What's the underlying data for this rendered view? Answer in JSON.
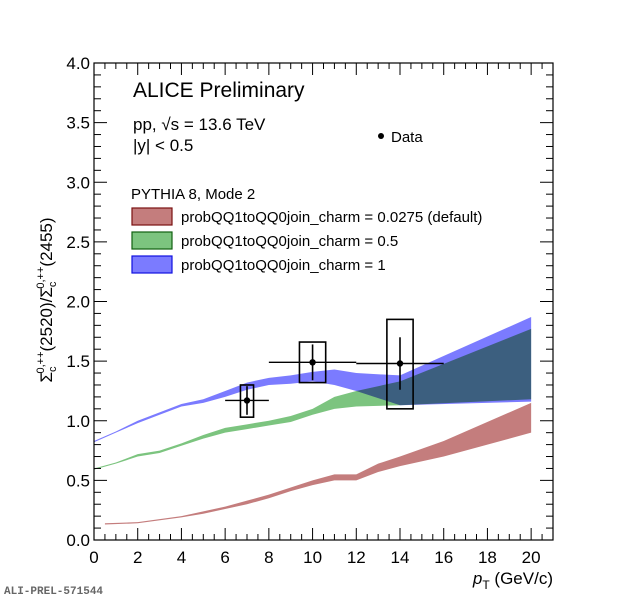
{
  "chart_data": {
    "type": "area",
    "title": "ALICE Preliminary",
    "subtitle_lines": [
      "pp, √s = 13.6 TeV",
      "|y| < 0.5"
    ],
    "xlabel": "p_T (GeV/c)",
    "xlabel_main": "p",
    "xlabel_sub": "T",
    "xlabel_unit": " (GeV/c)",
    "ylabel": "Σc0,++(2520)/Σc0,++(2455)",
    "xlim": [
      0,
      21
    ],
    "ylim": [
      0,
      4
    ],
    "xticks": [
      "0",
      "2",
      "4",
      "6",
      "8",
      "10",
      "12",
      "14",
      "16",
      "18",
      "20"
    ],
    "yticks": [
      "0.0",
      "0.5",
      "1.0",
      "1.5",
      "2.0",
      "2.5",
      "3.0",
      "3.5",
      "4.0"
    ],
    "legend_header": "PYTHIA 8, Mode 2",
    "data_legend": "Data",
    "colors": {
      "default": "#c47d7d",
      "half": "#7cc47f",
      "one": "#7b7bff",
      "overlap": "#46707e"
    },
    "series": [
      {
        "name": "probQQ1toQQ0join_charm = 0.0275 (default)",
        "color": "#c47d7d",
        "x": [
          0.5,
          2,
          4,
          5,
          6,
          7,
          8,
          9,
          10,
          11,
          12,
          13,
          14,
          16,
          20
        ],
        "low": [
          0.13,
          0.14,
          0.19,
          0.22,
          0.26,
          0.3,
          0.35,
          0.41,
          0.46,
          0.5,
          0.5,
          0.57,
          0.62,
          0.7,
          0.9
        ],
        "high": [
          0.14,
          0.15,
          0.2,
          0.24,
          0.28,
          0.33,
          0.38,
          0.44,
          0.5,
          0.55,
          0.55,
          0.64,
          0.7,
          0.83,
          1.15
        ]
      },
      {
        "name": "probQQ1toQQ0join_charm = 0.5",
        "color": "#7cc47f",
        "x": [
          0,
          1,
          2,
          3,
          4,
          5,
          6,
          7,
          8,
          9,
          10,
          11,
          12,
          14,
          20
        ],
        "low": [
          0.59,
          0.64,
          0.7,
          0.73,
          0.79,
          0.85,
          0.9,
          0.93,
          0.96,
          0.99,
          1.05,
          1.1,
          1.12,
          1.13,
          1.18
        ],
        "high": [
          0.6,
          0.65,
          0.72,
          0.75,
          0.81,
          0.88,
          0.94,
          0.97,
          1.0,
          1.04,
          1.1,
          1.2,
          1.25,
          1.33,
          1.77
        ]
      },
      {
        "name": "probQQ1toQQ0join_charm = 1",
        "color": "#7b7bff",
        "x": [
          0,
          1,
          2,
          3,
          4,
          5,
          6,
          7,
          8,
          9,
          10,
          11,
          12,
          14,
          20
        ],
        "low": [
          0.82,
          0.9,
          0.98,
          1.05,
          1.12,
          1.15,
          1.2,
          1.26,
          1.3,
          1.31,
          1.33,
          1.3,
          1.25,
          1.13,
          1.16
        ],
        "high": [
          0.83,
          0.91,
          1.0,
          1.07,
          1.14,
          1.18,
          1.25,
          1.32,
          1.36,
          1.38,
          1.41,
          1.43,
          1.4,
          1.38,
          1.87
        ]
      }
    ],
    "data_points": {
      "name": "Data",
      "x": [
        7,
        10,
        14
      ],
      "y": [
        1.17,
        1.49,
        1.48
      ],
      "xerr": [
        1,
        2,
        2
      ],
      "yerr_stat": [
        0.12,
        0.15,
        0.22
      ],
      "box_halfwidth": [
        0.3,
        0.6,
        0.6
      ],
      "syst_low": [
        1.03,
        1.32,
        1.1
      ],
      "syst_high": [
        1.3,
        1.66,
        1.85
      ]
    }
  },
  "watermark": "ALI-PREL-571544"
}
